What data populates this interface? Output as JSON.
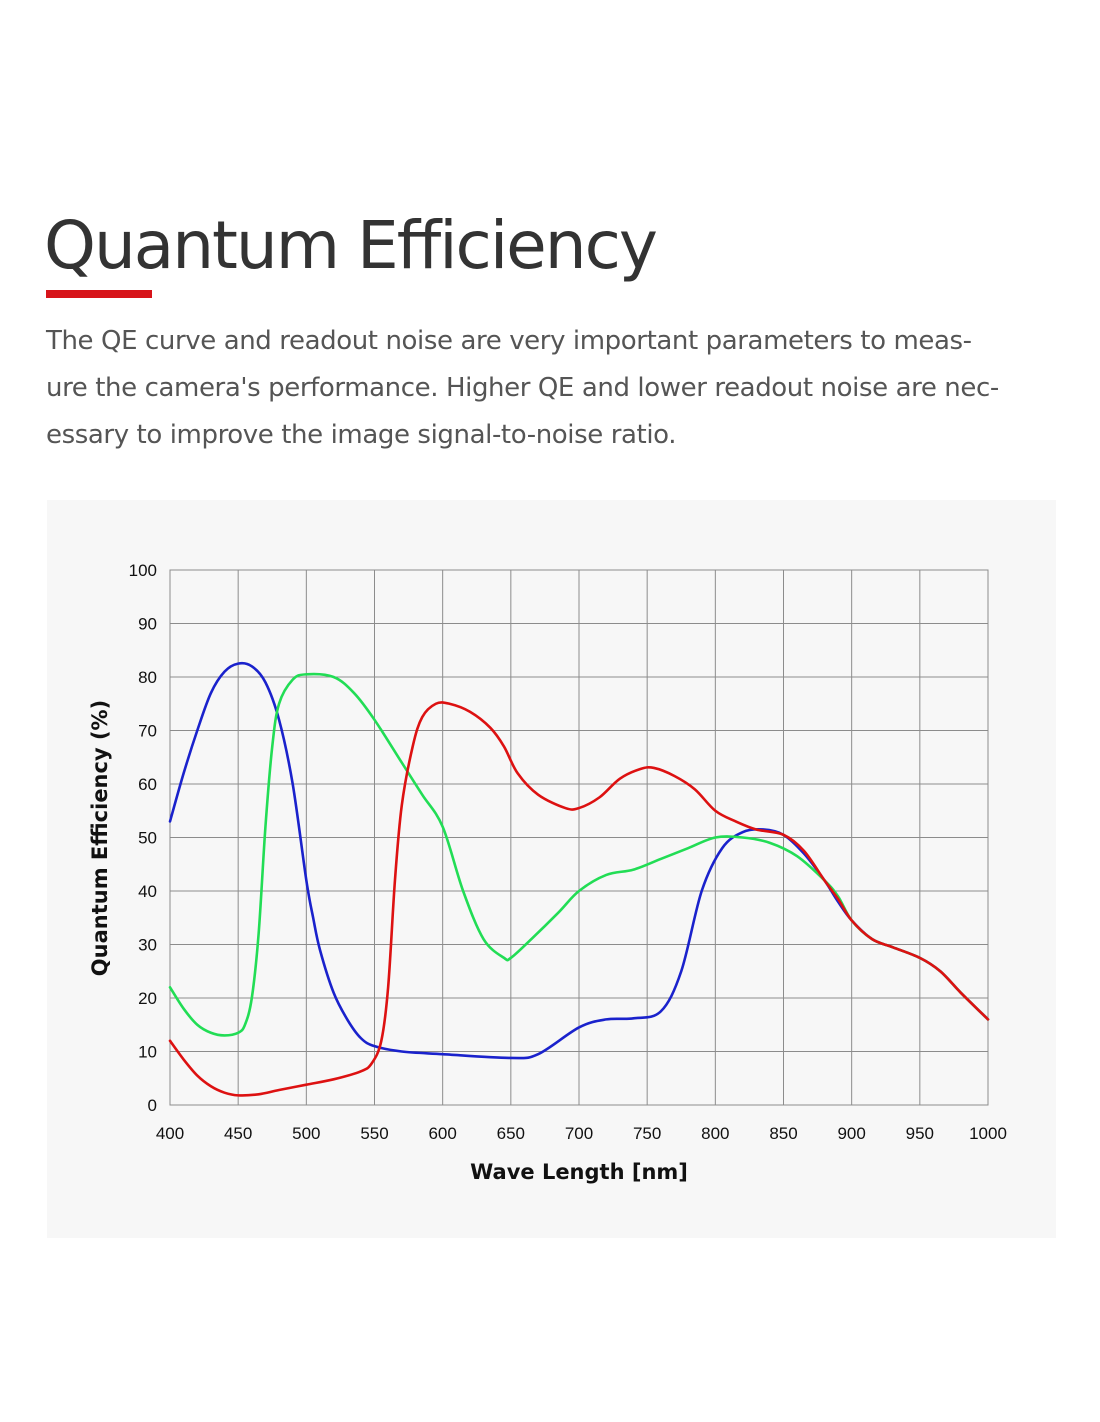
{
  "header": {
    "title": "Quantum Efficiency",
    "accent_color": "#d7141a"
  },
  "intro": {
    "lines": [
      "The QE curve and readout noise are very important parameters to meas-",
      "ure the camera's performance. Higher QE and lower readout noise are nec-",
      "essary to improve the image signal-to-noise ratio."
    ]
  },
  "chart_data": {
    "type": "line",
    "title": "",
    "xlabel": "Wave Length [nm]",
    "ylabel": "Quantum Efficiency (%)",
    "xlim": [
      400,
      1000
    ],
    "ylim": [
      0,
      100
    ],
    "xticks": [
      400,
      450,
      500,
      550,
      600,
      650,
      700,
      750,
      800,
      850,
      900,
      950,
      1000
    ],
    "yticks": [
      0,
      10,
      20,
      30,
      40,
      50,
      60,
      70,
      80,
      90,
      100
    ],
    "grid": true,
    "legend": "none",
    "series": [
      {
        "color": "#1a22cc",
        "points": [
          [
            400,
            53
          ],
          [
            410,
            62
          ],
          [
            420,
            70
          ],
          [
            430,
            77
          ],
          [
            440,
            81
          ],
          [
            450,
            82.5
          ],
          [
            460,
            82
          ],
          [
            470,
            79
          ],
          [
            480,
            72
          ],
          [
            490,
            60
          ],
          [
            500,
            42
          ],
          [
            505,
            35
          ],
          [
            510,
            29
          ],
          [
            520,
            21
          ],
          [
            530,
            16
          ],
          [
            540,
            12.5
          ],
          [
            550,
            11
          ],
          [
            570,
            10
          ],
          [
            600,
            9.5
          ],
          [
            650,
            8.8
          ],
          [
            670,
            9.5
          ],
          [
            700,
            14.5
          ],
          [
            720,
            16
          ],
          [
            740,
            16.2
          ],
          [
            760,
            17.5
          ],
          [
            775,
            25
          ],
          [
            790,
            40
          ],
          [
            805,
            48
          ],
          [
            820,
            51
          ],
          [
            835,
            51.5
          ],
          [
            850,
            50.5
          ],
          [
            865,
            47
          ],
          [
            880,
            42
          ],
          [
            890,
            38
          ],
          [
            900,
            34.5
          ],
          [
            915,
            31
          ],
          [
            930,
            29.5
          ],
          [
            950,
            27.5
          ],
          [
            965,
            25
          ],
          [
            980,
            21
          ],
          [
            1000,
            16
          ]
        ]
      },
      {
        "color": "#22dd55",
        "points": [
          [
            400,
            22
          ],
          [
            410,
            18
          ],
          [
            420,
            15
          ],
          [
            430,
            13.5
          ],
          [
            440,
            13
          ],
          [
            450,
            13.5
          ],
          [
            455,
            15
          ],
          [
            460,
            20
          ],
          [
            465,
            32
          ],
          [
            470,
            52
          ],
          [
            475,
            67
          ],
          [
            480,
            75
          ],
          [
            490,
            79.5
          ],
          [
            500,
            80.5
          ],
          [
            520,
            80
          ],
          [
            535,
            77
          ],
          [
            550,
            72
          ],
          [
            570,
            64
          ],
          [
            585,
            58
          ],
          [
            600,
            52
          ],
          [
            615,
            40
          ],
          [
            630,
            31
          ],
          [
            645,
            27.5
          ],
          [
            650,
            27.5
          ],
          [
            665,
            31
          ],
          [
            685,
            36
          ],
          [
            700,
            40
          ],
          [
            720,
            43
          ],
          [
            740,
            44
          ],
          [
            760,
            46
          ],
          [
            780,
            48
          ],
          [
            800,
            50
          ],
          [
            820,
            50
          ],
          [
            840,
            49
          ],
          [
            860,
            46.5
          ],
          [
            880,
            42
          ],
          [
            890,
            39
          ],
          [
            900,
            34.5
          ],
          [
            915,
            31
          ],
          [
            930,
            29.5
          ],
          [
            950,
            27.5
          ],
          [
            965,
            25
          ],
          [
            980,
            21
          ],
          [
            1000,
            16
          ]
        ]
      },
      {
        "color": "#dd1111",
        "points": [
          [
            400,
            12
          ],
          [
            410,
            8.5
          ],
          [
            420,
            5.5
          ],
          [
            430,
            3.5
          ],
          [
            440,
            2.3
          ],
          [
            450,
            1.8
          ],
          [
            465,
            2
          ],
          [
            480,
            2.8
          ],
          [
            500,
            3.8
          ],
          [
            520,
            4.8
          ],
          [
            540,
            6.3
          ],
          [
            548,
            7.8
          ],
          [
            555,
            12
          ],
          [
            560,
            22
          ],
          [
            565,
            42
          ],
          [
            570,
            56
          ],
          [
            578,
            67
          ],
          [
            585,
            72.5
          ],
          [
            595,
            75
          ],
          [
            605,
            75
          ],
          [
            620,
            73.5
          ],
          [
            635,
            70.5
          ],
          [
            645,
            67
          ],
          [
            655,
            62
          ],
          [
            670,
            58
          ],
          [
            690,
            55.5
          ],
          [
            700,
            55.5
          ],
          [
            715,
            57.5
          ],
          [
            730,
            61
          ],
          [
            745,
            62.8
          ],
          [
            755,
            63
          ],
          [
            770,
            61.5
          ],
          [
            785,
            59
          ],
          [
            800,
            55
          ],
          [
            815,
            53
          ],
          [
            830,
            51.5
          ],
          [
            850,
            50.5
          ],
          [
            865,
            47.5
          ],
          [
            880,
            42
          ],
          [
            890,
            38.5
          ],
          [
            900,
            34.5
          ],
          [
            915,
            31
          ],
          [
            930,
            29.5
          ],
          [
            950,
            27.5
          ],
          [
            965,
            25
          ],
          [
            980,
            21
          ],
          [
            1000,
            16
          ]
        ]
      }
    ]
  }
}
